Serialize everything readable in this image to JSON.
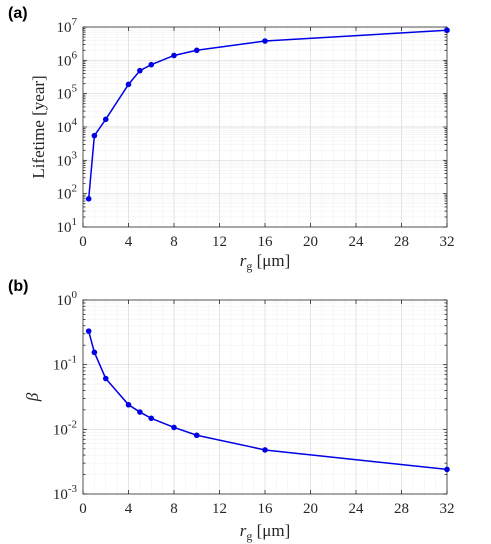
{
  "chart_data": [
    {
      "type": "line",
      "panel_label": "(a)",
      "x": [
        0.5,
        1,
        2,
        4,
        5,
        6,
        8,
        10,
        16,
        32
      ],
      "series": [
        {
          "values": [
            70,
            5500,
            17000,
            190000,
            490000,
            740000,
            1400000,
            2000000,
            3800000,
            8000000
          ],
          "color": "#0000e6"
        }
      ],
      "xlabel": {
        "main": "r",
        "sub": "g",
        "units": "[μm]"
      },
      "ylabel": "Lifetime [year]",
      "xlim": [
        0,
        32
      ],
      "ylim": [
        10,
        10000000
      ],
      "yscale": "log",
      "xticks": [
        "0",
        "4",
        "8",
        "12",
        "16",
        "20",
        "24",
        "28",
        "32"
      ],
      "yticks": [
        {
          "base": "10",
          "exp": "1"
        },
        {
          "base": "10",
          "exp": "2"
        },
        {
          "base": "10",
          "exp": "3"
        },
        {
          "base": "10",
          "exp": "4"
        },
        {
          "base": "10",
          "exp": "5"
        },
        {
          "base": "10",
          "exp": "6"
        },
        {
          "base": "10",
          "exp": "7"
        }
      ],
      "grid": true
    },
    {
      "type": "line",
      "panel_label": "(b)",
      "x": [
        0.5,
        1,
        2,
        4,
        5,
        6,
        8,
        10,
        16,
        32
      ],
      "series": [
        {
          "values": [
            0.33,
            0.155,
            0.061,
            0.024,
            0.0185,
            0.0148,
            0.0107,
            0.0081,
            0.0048,
            0.0024
          ],
          "color": "#0000e6"
        }
      ],
      "xlabel": {
        "main": "r",
        "sub": "g",
        "units": "[μm]"
      },
      "ylabel": "β",
      "xlim": [
        0,
        32
      ],
      "ylim": [
        0.001,
        1
      ],
      "yscale": "log",
      "xticks": [
        "0",
        "4",
        "8",
        "12",
        "16",
        "20",
        "24",
        "28",
        "32"
      ],
      "yticks": [
        {
          "base": "10",
          "exp": "-3"
        },
        {
          "base": "10",
          "exp": "-2"
        },
        {
          "base": "10",
          "exp": "-1"
        },
        {
          "base": "10",
          "exp": "0"
        }
      ],
      "grid": true
    }
  ]
}
